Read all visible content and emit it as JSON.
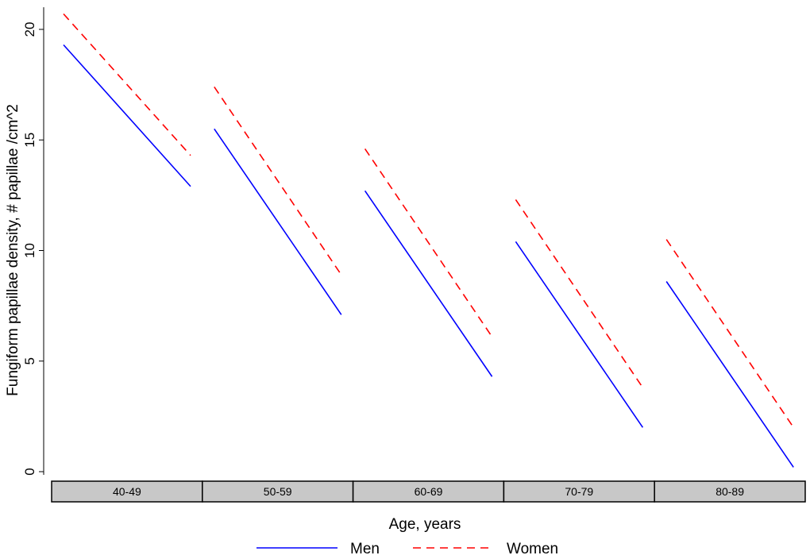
{
  "chart_data": {
    "type": "line",
    "title": "",
    "xlabel": "Age, years",
    "ylabel": "Fungiform papillae density, # papillae /cm^2",
    "ylim": [
      0,
      21
    ],
    "yticks": [
      0,
      5,
      10,
      15,
      20
    ],
    "grid": false,
    "legend_placement": "bottom",
    "panels": [
      "40-49",
      "50-59",
      "60-69",
      "70-79",
      "80-89"
    ],
    "series": [
      {
        "name": "Men",
        "color": "#0000ff",
        "style": "solid",
        "segments": [
          [
            19.3,
            12.9
          ],
          [
            15.5,
            7.1
          ],
          [
            12.7,
            4.3
          ],
          [
            10.4,
            2.0
          ],
          [
            8.6,
            0.2
          ]
        ]
      },
      {
        "name": "Women",
        "color": "#ff0000",
        "style": "dashed",
        "segments": [
          [
            20.7,
            14.3
          ],
          [
            17.4,
            8.9
          ],
          [
            14.6,
            6.1
          ],
          [
            12.3,
            3.8
          ],
          [
            10.5,
            2.0
          ]
        ]
      }
    ]
  }
}
